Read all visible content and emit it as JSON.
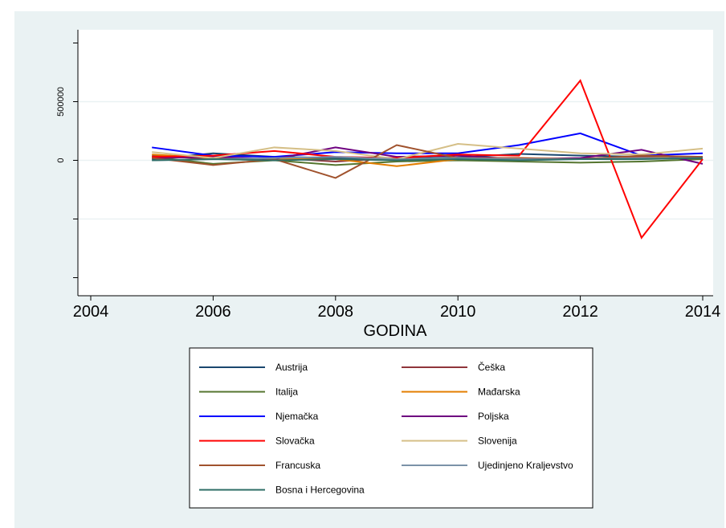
{
  "chart_data": {
    "type": "line",
    "title": "",
    "xlabel": "GODINA",
    "ylabel": "",
    "xlim": [
      2004,
      2014
    ],
    "ylim": [
      -1000000,
      1000000
    ],
    "x_ticks": [
      "2004",
      "2006",
      "2008",
      "2010",
      "2012",
      "2014"
    ],
    "y_ticks": [
      {
        "value": -1000000,
        "label": ""
      },
      {
        "value": -500000,
        "label": ""
      },
      {
        "value": 0,
        "label": "0"
      },
      {
        "value": 500000,
        "label": "500000"
      },
      {
        "value": 1000000,
        "label": ""
      }
    ],
    "grid": true,
    "legend_position": "bottom",
    "x": [
      2005,
      2006,
      2007,
      2008,
      2009,
      2010,
      2011,
      2012,
      2013,
      2014
    ],
    "series": [
      {
        "name": "Austrija",
        "color": "#1a476f",
        "values": [
          10000,
          60000,
          30000,
          20000,
          15000,
          25000,
          55000,
          40000,
          30000,
          25000
        ]
      },
      {
        "name": "Češka",
        "color": "#90353b",
        "values": [
          40000,
          10000,
          20000,
          -10000,
          20000,
          5000,
          10000,
          15000,
          30000,
          20000
        ]
      },
      {
        "name": "Italija",
        "color": "#55752f",
        "values": [
          30000,
          -30000,
          0,
          -40000,
          -10000,
          0,
          -10000,
          -20000,
          -10000,
          10000
        ]
      },
      {
        "name": "Mađarska",
        "color": "#e37e00",
        "values": [
          50000,
          20000,
          10000,
          10000,
          -50000,
          10000,
          20000,
          10000,
          20000,
          30000
        ]
      },
      {
        "name": "Njemačka",
        "color": "#0000ff",
        "values": [
          110000,
          40000,
          30000,
          70000,
          60000,
          60000,
          130000,
          230000,
          40000,
          60000
        ]
      },
      {
        "name": "Poljska",
        "color": "#6e0080",
        "values": [
          20000,
          30000,
          10000,
          110000,
          30000,
          40000,
          10000,
          20000,
          90000,
          -30000
        ]
      },
      {
        "name": "Slovačka",
        "color": "#ff0000",
        "values": [
          30000,
          40000,
          80000,
          30000,
          20000,
          50000,
          40000,
          680000,
          -660000,
          10000
        ]
      },
      {
        "name": "Slovenija",
        "color": "#d5bf87",
        "values": [
          70000,
          20000,
          110000,
          80000,
          10000,
          140000,
          100000,
          60000,
          50000,
          100000
        ]
      },
      {
        "name": "Francuska",
        "color": "#a0522d",
        "values": [
          20000,
          -40000,
          10000,
          -150000,
          130000,
          20000,
          20000,
          10000,
          40000,
          30000
        ]
      },
      {
        "name": "Ujedinjeno Kraljevstvo",
        "color": "#7b92a8",
        "values": [
          0,
          10000,
          20000,
          30000,
          10000,
          20000,
          10000,
          10000,
          20000,
          20000
        ]
      },
      {
        "name": "Bosna i Hercegovina",
        "color": "#2d6d66",
        "values": [
          0,
          10000,
          0,
          10000,
          0,
          10000,
          0,
          10000,
          10000,
          20000
        ]
      }
    ]
  }
}
